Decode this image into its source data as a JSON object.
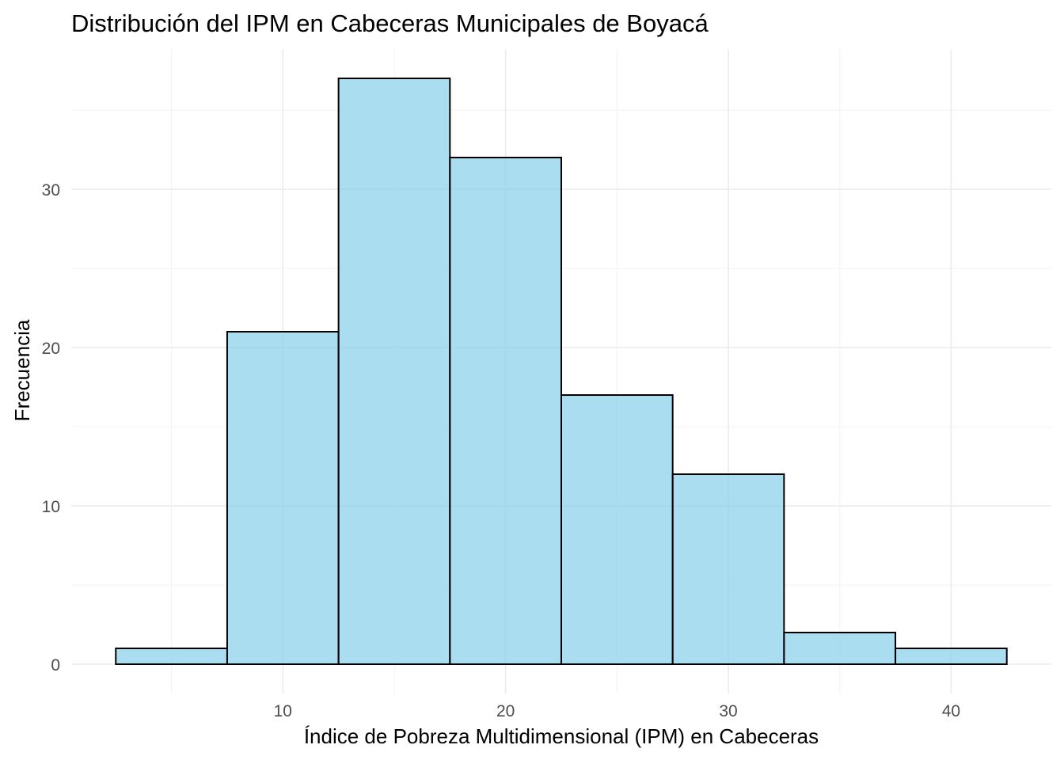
{
  "chart_data": {
    "type": "bar",
    "title": "Distribución del IPM en Cabeceras Municipales de Boyacá",
    "xlabel": "Índice de Pobreza Multidimensional (IPM) en Cabeceras",
    "ylabel": "Frecuencia",
    "bin_width": 5,
    "bins": [
      {
        "start": 2.5,
        "end": 7.5,
        "count": 1
      },
      {
        "start": 7.5,
        "end": 12.5,
        "count": 21
      },
      {
        "start": 12.5,
        "end": 17.5,
        "count": 37
      },
      {
        "start": 17.5,
        "end": 22.5,
        "count": 32
      },
      {
        "start": 22.5,
        "end": 27.5,
        "count": 17
      },
      {
        "start": 27.5,
        "end": 32.5,
        "count": 12
      },
      {
        "start": 32.5,
        "end": 37.5,
        "count": 2
      },
      {
        "start": 37.5,
        "end": 42.5,
        "count": 1
      }
    ],
    "xlim": [
      0.5,
      44.5
    ],
    "ylim": [
      -1.85,
      38.85
    ],
    "x_ticks": [
      10,
      20,
      30,
      40
    ],
    "y_ticks": [
      0,
      10,
      20,
      30
    ],
    "grid": true,
    "colors": {
      "fill": "#87ceeb",
      "outline": "#000000",
      "grid": "#ebebeb"
    }
  }
}
